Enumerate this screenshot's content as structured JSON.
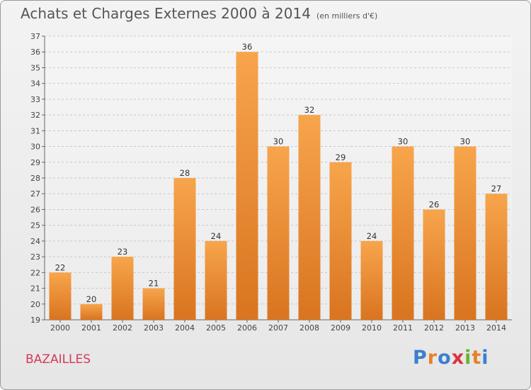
{
  "title": "Achats et Charges Externes 2000 à 2014",
  "subtitle": "(en milliers d'€)",
  "town": "BAZAILLES",
  "logo": {
    "text": "Proxiti",
    "colors": [
      "#3a7fd0",
      "#e8812a",
      "#3a7fd0",
      "#d8353d",
      "#6bb03a",
      "#e8812a",
      "#3a7fd0"
    ]
  },
  "chart_data": {
    "type": "bar",
    "categories": [
      "2000",
      "2001",
      "2002",
      "2003",
      "2004",
      "2005",
      "2006",
      "2007",
      "2008",
      "2009",
      "2010",
      "2011",
      "2012",
      "2013",
      "2014"
    ],
    "values": [
      22,
      20,
      23,
      21,
      28,
      24,
      36,
      30,
      32,
      29,
      24,
      30,
      26,
      30,
      27
    ],
    "ylim": [
      19,
      37
    ],
    "yticks": [
      19,
      20,
      21,
      22,
      23,
      24,
      25,
      26,
      27,
      28,
      29,
      30,
      31,
      32,
      33,
      34,
      35,
      36,
      37
    ],
    "grid": true,
    "bar_color": "#f0903a"
  }
}
